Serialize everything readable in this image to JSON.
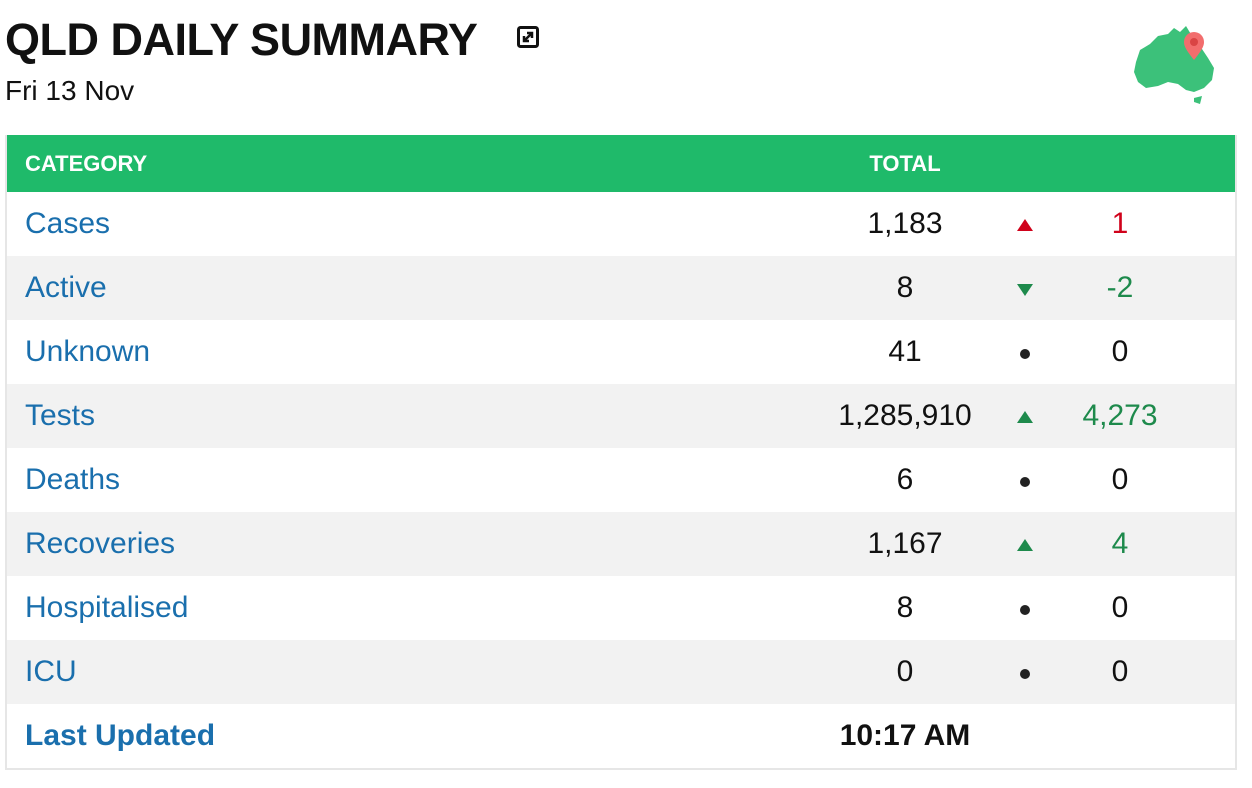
{
  "header": {
    "title": "QLD DAILY SUMMARY",
    "date": "Fri 13 Nov"
  },
  "table": {
    "columns": [
      "CATEGORY",
      "TOTAL"
    ],
    "rows": [
      {
        "category": "Cases",
        "total": "1,183",
        "change": "1",
        "trend": "up",
        "color": "#d0021b"
      },
      {
        "category": "Active",
        "total": "8",
        "change": "-2",
        "trend": "down",
        "color": "#1e8a4c"
      },
      {
        "category": "Unknown",
        "total": "41",
        "change": "0",
        "trend": "flat",
        "color": "#111111"
      },
      {
        "category": "Tests",
        "total": "1,285,910",
        "change": "4,273",
        "trend": "up",
        "color": "#1e8a4c"
      },
      {
        "category": "Deaths",
        "total": "6",
        "change": "0",
        "trend": "flat",
        "color": "#111111"
      },
      {
        "category": "Recoveries",
        "total": "1,167",
        "change": "4",
        "trend": "up",
        "color": "#1e8a4c"
      },
      {
        "category": "Hospitalised",
        "total": "8",
        "change": "0",
        "trend": "flat",
        "color": "#111111"
      },
      {
        "category": "ICU",
        "total": "0",
        "change": "0",
        "trend": "flat",
        "color": "#111111"
      }
    ],
    "footer": {
      "label": "Last Updated",
      "value": "10:17 AM"
    }
  }
}
